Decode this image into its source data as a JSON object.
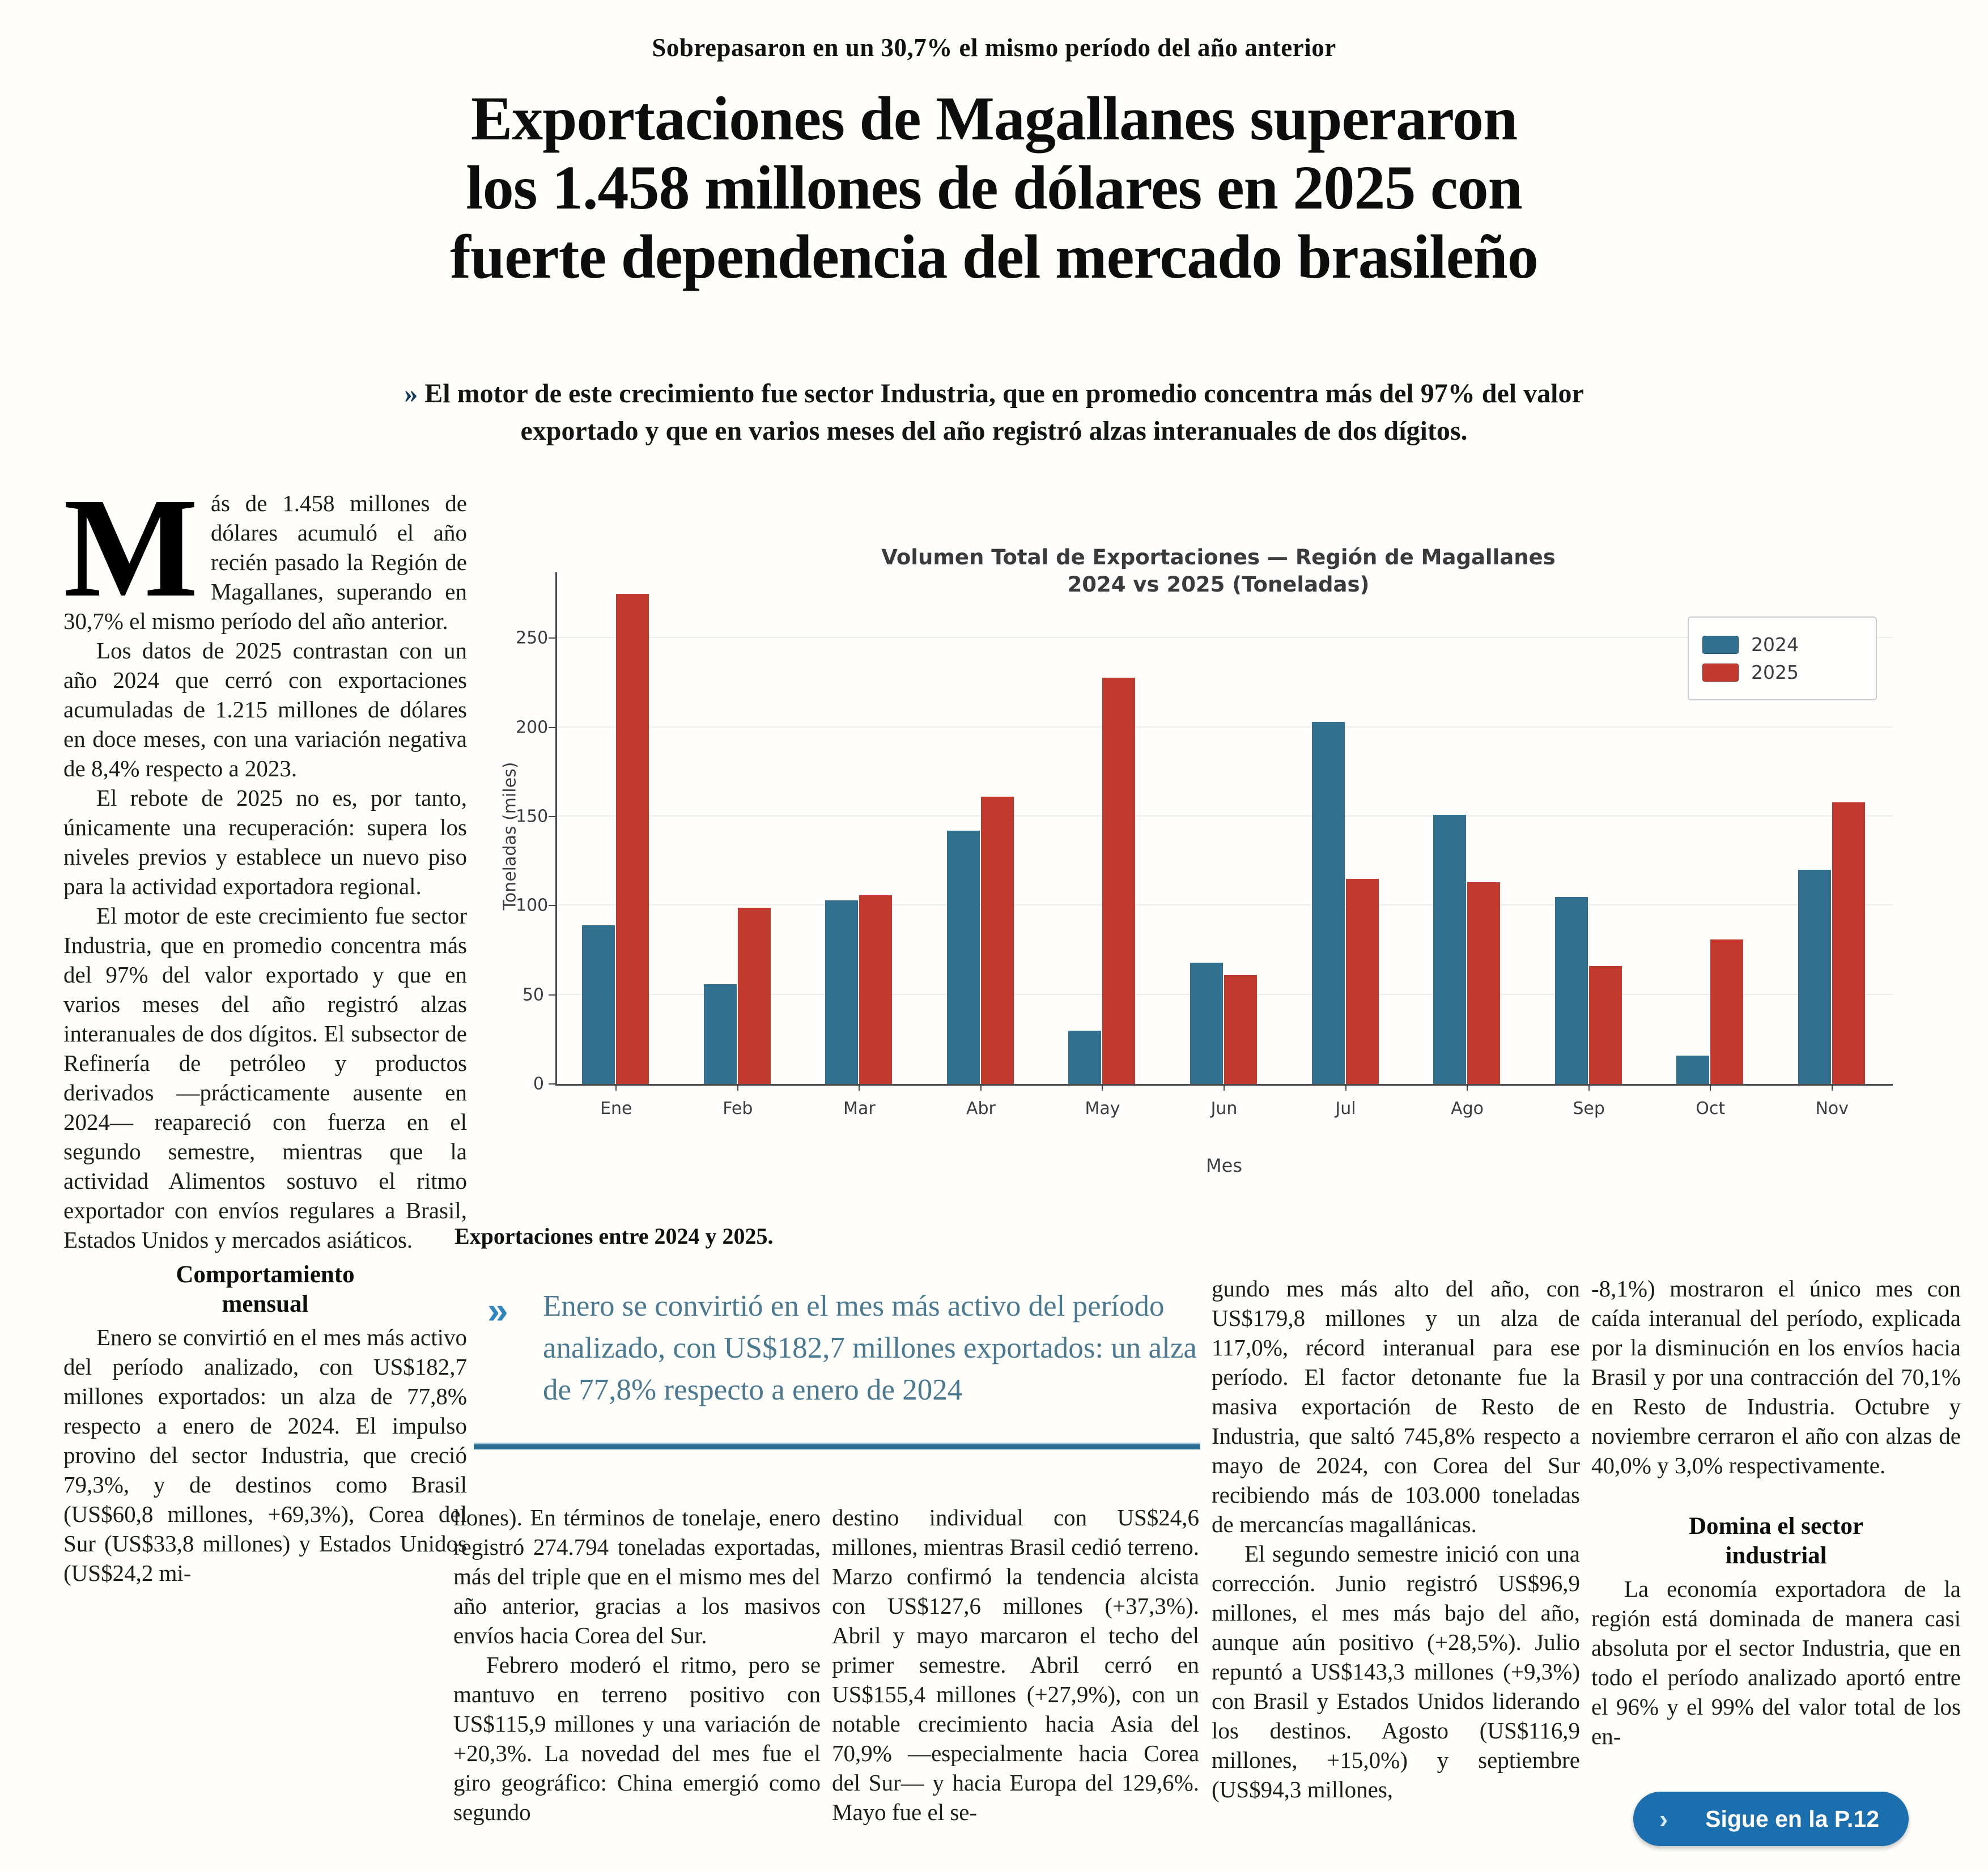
{
  "page": {
    "kicker": "Sobrepasaron en un 30,7% el mismo período del año anterior",
    "headline_lines": [
      "Exportaciones de Magallanes superaron",
      "los 1.458 millones de dólares en 2025 con",
      "fuerte dependencia del mercado brasileño"
    ],
    "deck_marker": "»",
    "deck": "El motor de este crecimiento fue sector Industria, que en promedio concentra más del 97% del valor exportado y que en varios meses del año registró alzas interanuales de dos dígitos."
  },
  "article": {
    "col1": {
      "dropcap": "M",
      "p1_rest": "ás de 1.458 millones de dólares acumuló el año recién pasado la Región de Magallanes, superando en 30,7% el mismo período del año anterior.",
      "p2": "Los datos de 2025 contrastan con un año 2024 que cerró con exportaciones acumuladas de 1.215 millones de dólares en doce meses, con una variación negativa de 8,4% respecto a 2023.",
      "p3": "El rebote de 2025 no es, por tanto, únicamente una recuperación: supera los niveles previos y establece un nuevo piso para la actividad exportadora regional.",
      "p4": "El motor de este crecimiento fue sector Industria, que en promedio concentra más del 97% del valor exportado y que en varios meses del año registró alzas interanuales de dos dígitos. El subsector de Refinería de petróleo y productos derivados —prácticamente ausente en 2024— reapareció con fuerza en el segundo semestre, mientras que la actividad Alimentos sostuvo el ritmo exportador con envíos regulares a Brasil, Estados Unidos y mercados asiáticos.",
      "subhead": "Comportamiento mensual",
      "p5": "Enero se convirtió en el mes más activo del período analizado, con US$182,7 millones exportados: un alza de 77,8% respecto a enero de 2024. El impulso provino del sector Industria, que creció 79,3%, y de destinos como Brasil (US$60,8 millones, +69,3%), Corea del Sur (US$33,8 millones) y Estados Unidos (US$24,2 mi-"
    },
    "col2": {
      "p1": "llones). En términos de tonelaje, enero registró 274.794 toneladas exportadas, más del triple que en el mismo mes del año anterior, gracias a los masivos envíos hacia Corea del Sur.",
      "p2": "Febrero moderó el ritmo, pero se mantuvo en terreno positivo con US$115,9 millones y una variación de +20,3%. La novedad del mes fue el giro geográfico: China emergió como segundo"
    },
    "col3": {
      "p1": "destino individual con US$24,6 millones, mientras Brasil cedió terreno. Marzo confirmó la tendencia alcista con US$127,6 millones (+37,3%). Abril y mayo marcaron el techo del primer semestre. Abril cerró en US$155,4 millones (+27,9%), con un notable crecimiento hacia Asia del 70,9% —especialmente hacia Corea del Sur— y hacia Europa del 129,6%. Mayo fue el se-"
    },
    "col4": {
      "p1": "gundo mes más alto del año, con US$179,8 millones y un alza de 117,0%, récord interanual para ese período. El factor detonante fue la masiva exportación de Resto de Industria, que saltó 745,8% respecto a mayo de 2024, con Corea del Sur recibiendo más de 103.000 toneladas de mercancías magallánicas.",
      "p2": "El segundo semestre inició con una corrección. Junio registró US$96,9 millones, el mes más bajo del año, aunque aún positivo (+28,5%). Julio repuntó a US$143,3 millones (+9,3%) con Brasil y Estados Unidos liderando los destinos. Agosto (US$116,9 millones, +15,0%) y septiembre (US$94,3 millones,"
    },
    "col5": {
      "p1": "-8,1%) mostraron el único mes con caída interanual del período, explicada por la disminución en los envíos hacia Brasil y por una contracción del 70,1% en Resto de Industria. Octubre y noviembre cerraron el año con alzas de 40,0% y 3,0% respectivamente.",
      "subhead": "Domina el sector industrial",
      "p2": "La economía exportadora de la región está dominada de manera casi absoluta por el sector Industria, que en todo el período analizado aportó entre el 96% y el 99% del valor total de los en-"
    }
  },
  "figure": {
    "caption": "Exportaciones entre 2024 y 2025."
  },
  "pullquote": {
    "marker": "»",
    "text": "Enero se convirtió en el mes más activo del período analizado, con US$182,7 millones exportados: un alza de 77,8% respecto a enero de 2024"
  },
  "continuation": {
    "chevron": "›",
    "label": "Sigue en la P.12"
  },
  "chart_data": {
    "type": "bar",
    "title_lines": [
      "Volumen Total de Exportaciones — Región de Magallanes",
      "2024 vs 2025 (Toneladas)"
    ],
    "xlabel": "Mes",
    "ylabel": "Toneladas (miles)",
    "categories": [
      "Ene",
      "Feb",
      "Mar",
      "Abr",
      "May",
      "Jun",
      "Jul",
      "Ago",
      "Sep",
      "Oct",
      "Nov"
    ],
    "series": [
      {
        "name": "2024",
        "color": "#31708F",
        "values": [
          89,
          56,
          103,
          142,
          30,
          68,
          203,
          151,
          105,
          16,
          120
        ]
      },
      {
        "name": "2025",
        "color": "#C13A2D",
        "values": [
          275,
          99,
          106,
          161,
          228,
          61,
          115,
          113,
          66,
          81,
          158
        ]
      }
    ],
    "yticks": [
      0,
      50,
      100,
      150,
      200,
      250
    ],
    "ylim": [
      0,
      287
    ],
    "grid": true,
    "legend_position": "top-right"
  },
  "colors": {
    "accent_blue": "#1B6FAE",
    "pullquote_text": "#4A7A91",
    "pullquote_rule": "#2C6E94",
    "bar_2024": "#31708F",
    "bar_2025": "#C13A2D"
  }
}
